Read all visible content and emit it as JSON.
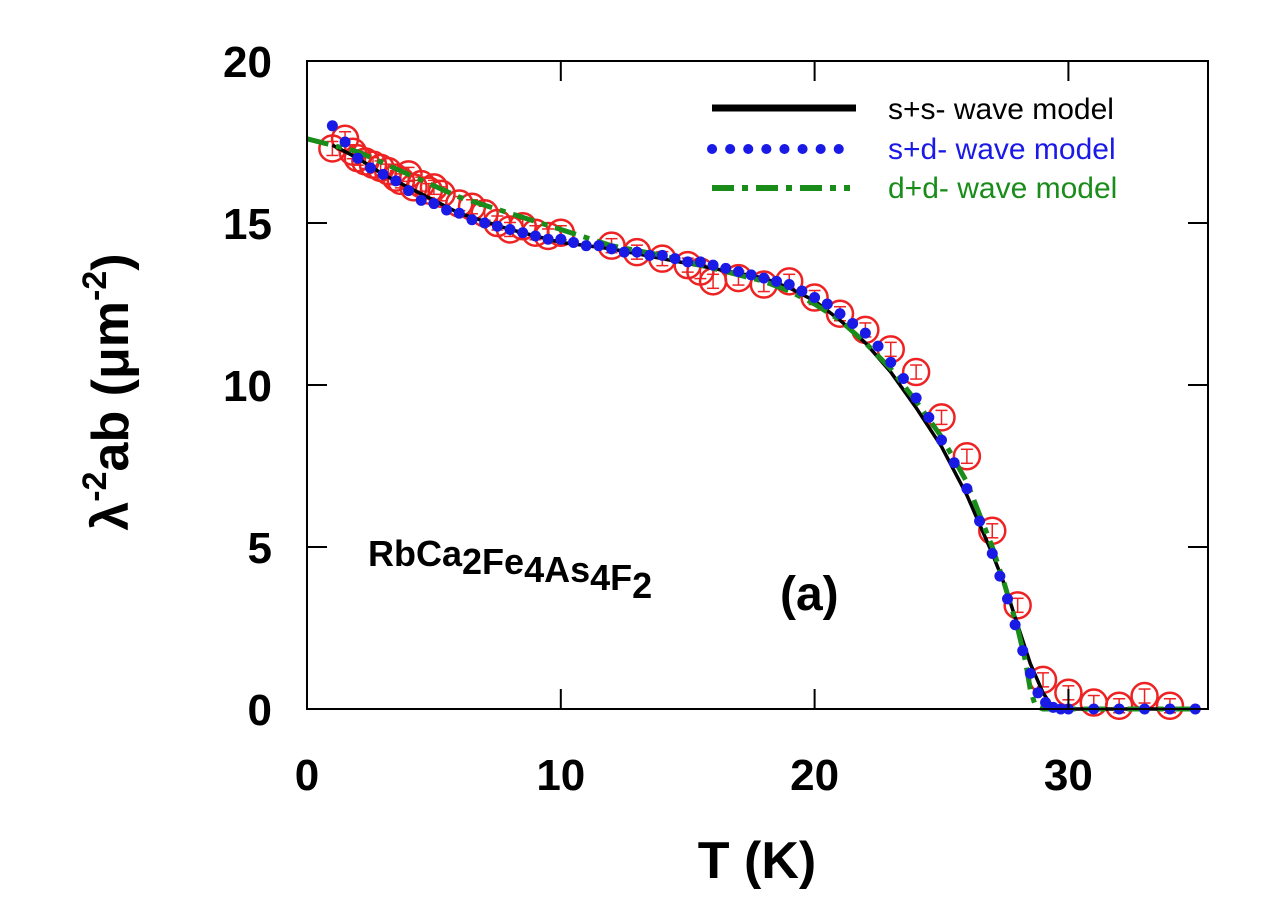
{
  "chart_data": {
    "type": "scatter",
    "xlabel": "T (K)",
    "ylabel": {
      "lambda": "λ",
      "exp": "-2",
      "ab": "ab",
      "unit_open": " (μm",
      "unit_exp": "-2",
      "unit_close": ")"
    },
    "xlim": [
      0,
      35.5
    ],
    "ylim": [
      0,
      20
    ],
    "xticks": [
      0,
      10,
      20,
      30
    ],
    "yticks": [
      0,
      5,
      10,
      15,
      20
    ],
    "grid": false,
    "legend_position": "top-right",
    "annotations": {
      "compound": {
        "parts": [
          [
            "RbCa",
            false
          ],
          [
            "2",
            true
          ],
          [
            "Fe",
            false
          ],
          [
            "4",
            true
          ],
          [
            "As",
            false
          ],
          [
            "4",
            true
          ],
          [
            "F",
            false
          ],
          [
            "2",
            true
          ]
        ]
      },
      "panel": "(a)"
    },
    "colors": {
      "data": "#ee2222",
      "ss": "#000000",
      "sd": "#1a1ae6",
      "dd": "#1a8c1a"
    },
    "series": [
      {
        "name": "data",
        "style": "open-circle",
        "x": [
          1.0,
          1.5,
          1.8,
          2.0,
          2.3,
          2.6,
          2.9,
          3.2,
          3.5,
          3.7,
          4.0,
          4.2,
          4.5,
          4.8,
          5.0,
          5.3,
          6.0,
          6.5,
          7.0,
          7.5,
          8.0,
          8.5,
          9.0,
          9.5,
          10.0,
          12.0,
          13.0,
          14.0,
          15.0,
          15.5,
          16.0,
          17.0,
          18.0,
          19.0,
          20.0,
          21.0,
          22.0,
          23.0,
          24.0,
          25.0,
          26.0,
          27.0,
          28.0,
          29.0,
          30.0,
          31.0,
          32.0,
          33.0,
          34.0
        ],
        "y": [
          17.3,
          17.6,
          17.2,
          17.0,
          16.9,
          16.8,
          16.7,
          16.6,
          16.4,
          16.3,
          16.5,
          16.1,
          16.2,
          16.0,
          16.1,
          15.9,
          15.6,
          15.5,
          15.3,
          15.0,
          14.8,
          14.9,
          14.7,
          14.6,
          14.7,
          14.3,
          14.1,
          13.9,
          13.7,
          13.5,
          13.2,
          13.3,
          13.1,
          13.2,
          12.7,
          12.2,
          11.7,
          11.1,
          10.4,
          9.0,
          7.8,
          5.5,
          3.2,
          0.9,
          0.5,
          0.2,
          0.1,
          0.4,
          0.1
        ]
      },
      {
        "name": "s+s- wave model",
        "style": "solid",
        "x": [
          1.0,
          2,
          3,
          4,
          5,
          6,
          8,
          10,
          12,
          14,
          16,
          18,
          19,
          20,
          21,
          22,
          23,
          24,
          25,
          26,
          27,
          27.5,
          28,
          28.5,
          29,
          29.3,
          29.6,
          30,
          32,
          35
        ],
        "y": [
          17.4,
          17.0,
          16.5,
          16.1,
          15.7,
          15.3,
          14.8,
          14.4,
          14.2,
          13.9,
          13.6,
          13.3,
          13.0,
          12.6,
          12.0,
          11.3,
          10.4,
          9.3,
          8.1,
          6.6,
          4.8,
          3.8,
          2.6,
          1.4,
          0.5,
          0.15,
          0.02,
          0,
          0,
          0
        ]
      },
      {
        "name": "s+d- wave model",
        "style": "dots",
        "x": [
          1.0,
          1.5,
          2.0,
          2.5,
          3.0,
          3.5,
          4.0,
          4.5,
          5.0,
          5.5,
          6.0,
          6.5,
          7.0,
          7.5,
          8.0,
          8.5,
          9.0,
          9.5,
          10.0,
          10.5,
          11.0,
          11.5,
          12.0,
          12.5,
          13.0,
          13.5,
          14.0,
          14.5,
          15.0,
          15.5,
          16.0,
          16.5,
          17.0,
          17.5,
          18.0,
          18.5,
          19.0,
          19.5,
          20.0,
          20.5,
          21.0,
          21.5,
          22.0,
          22.5,
          23.0,
          23.5,
          24.0,
          24.5,
          25.0,
          25.5,
          26.0,
          26.5,
          27.0,
          27.3,
          27.6,
          27.9,
          28.2,
          28.5,
          28.8,
          29.1,
          29.4,
          29.7,
          30.0,
          31.0,
          32.0,
          33.0,
          34.0,
          35.0
        ],
        "y": [
          18.0,
          17.5,
          17.0,
          16.7,
          16.5,
          16.3,
          16.0,
          15.7,
          15.6,
          15.4,
          15.3,
          15.1,
          15.0,
          14.9,
          14.8,
          14.7,
          14.6,
          14.5,
          14.5,
          14.4,
          14.3,
          14.3,
          14.2,
          14.1,
          14.1,
          14.0,
          14.0,
          13.9,
          13.8,
          13.8,
          13.7,
          13.6,
          13.5,
          13.4,
          13.3,
          13.2,
          13.1,
          12.9,
          12.7,
          12.5,
          12.2,
          11.9,
          11.6,
          11.2,
          10.7,
          10.2,
          9.6,
          9.0,
          8.3,
          7.6,
          6.8,
          5.8,
          4.8,
          4.1,
          3.4,
          2.6,
          1.8,
          1.1,
          0.5,
          0.2,
          0.05,
          0,
          0,
          0,
          0,
          0,
          0,
          0
        ]
      },
      {
        "name": "d+d- wave model",
        "style": "dash-dot",
        "x": [
          0,
          2,
          4,
          6,
          8,
          10,
          12,
          14,
          16,
          18,
          19,
          20,
          21,
          22,
          23,
          24,
          25,
          26,
          27,
          27.5,
          28,
          28.3,
          28.5,
          28.7,
          29,
          30,
          32,
          35
        ],
        "y": [
          17.6,
          17.2,
          16.5,
          15.8,
          15.3,
          14.8,
          14.3,
          14.0,
          13.6,
          13.2,
          12.9,
          12.5,
          12.0,
          11.3,
          10.5,
          9.5,
          8.4,
          7.0,
          5.0,
          3.8,
          2.5,
          1.5,
          0.6,
          0.1,
          0,
          0,
          0,
          0
        ]
      }
    ]
  }
}
